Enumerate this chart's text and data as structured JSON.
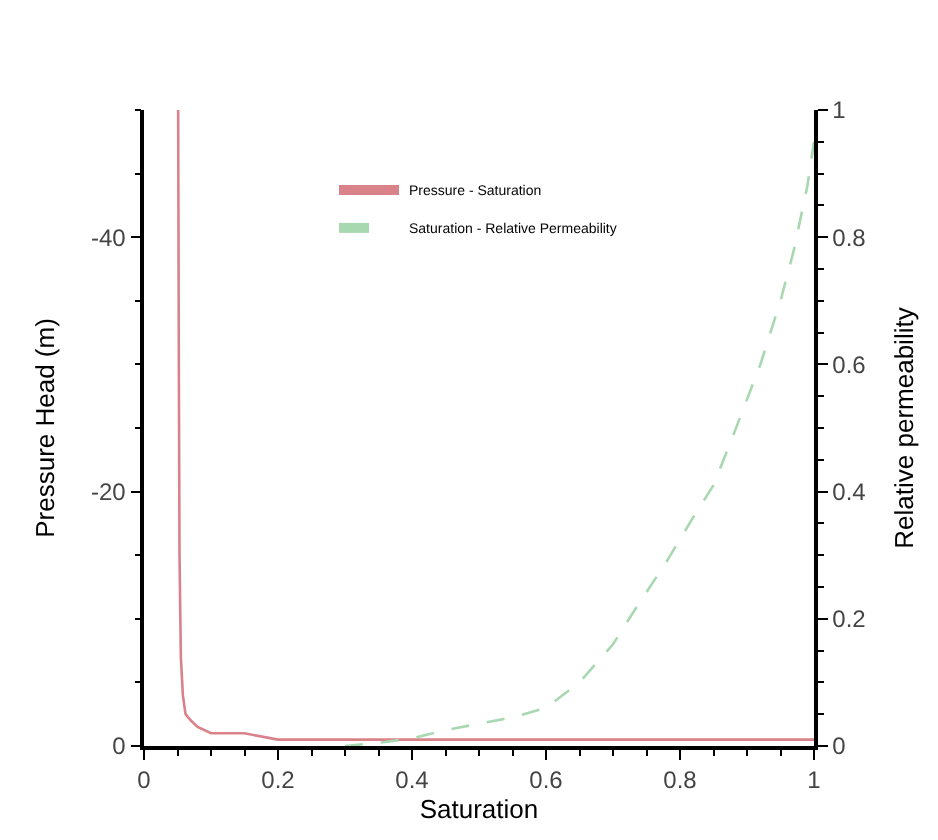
{
  "chart_data": {
    "type": "line",
    "xlabel": "Saturation",
    "ylabel": "Pressure Head (m)",
    "y2label": "Relative permeability",
    "xlim": [
      0,
      1
    ],
    "xticks": [
      0,
      0.2,
      0.4,
      0.6,
      0.8,
      1
    ],
    "ylim": [
      0,
      -50
    ],
    "yticks": [
      0,
      -20,
      -40
    ],
    "y2lim": [
      0,
      1
    ],
    "y2ticks": [
      0,
      0.2,
      0.4,
      0.6,
      0.8,
      1
    ],
    "legend": "top",
    "series": [
      {
        "name": "Pressure - Saturation",
        "color": "#d9828a",
        "line_style": "solid",
        "x": [
          0.051,
          0.052,
          0.053,
          0.055,
          0.058,
          0.062,
          0.07,
          0.08,
          0.1,
          0.15,
          0.2,
          0.3,
          0.4,
          0.5,
          0.6,
          0.7,
          0.8,
          0.9,
          1.0
        ],
        "values": [
          -50,
          -30,
          -15,
          -7,
          -4,
          -2.5,
          -2,
          -1.5,
          -1,
          -1,
          -0.5,
          -0.5,
          -0.5,
          -0.5,
          -0.5,
          -0.5,
          -0.5,
          -0.5,
          -0.5
        ]
      },
      {
        "name": "Saturation - Relative Permeability",
        "color": "#a8d8b0",
        "line_style": "dashed",
        "axis": "y2",
        "x": [
          0.3,
          0.35,
          0.4,
          0.45,
          0.5,
          0.55,
          0.6,
          0.65,
          0.7,
          0.73,
          0.78,
          0.82,
          0.85,
          0.88,
          0.92,
          0.95,
          0.97,
          0.99,
          1.0
        ],
        "values": [
          0.0,
          0.005,
          0.012,
          0.025,
          0.035,
          0.045,
          0.06,
          0.1,
          0.16,
          0.21,
          0.29,
          0.36,
          0.41,
          0.49,
          0.6,
          0.7,
          0.78,
          0.88,
          0.95
        ]
      }
    ]
  }
}
